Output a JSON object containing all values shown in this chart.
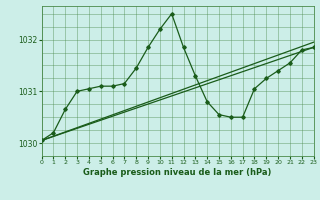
{
  "background_color": "#cceee8",
  "grid_color": "#4a8a4a",
  "line_color": "#1a5c1a",
  "xlabel": "Graphe pression niveau de la mer (hPa)",
  "ylim": [
    1029.75,
    1032.65
  ],
  "xlim": [
    0,
    23
  ],
  "x_ticks": [
    0,
    1,
    2,
    3,
    4,
    5,
    6,
    7,
    8,
    9,
    10,
    11,
    12,
    13,
    14,
    15,
    16,
    17,
    18,
    19,
    20,
    21,
    22,
    23
  ],
  "y_ticks": [
    1030,
    1031,
    1032
  ],
  "y_minor": [
    1029.75,
    1030.0,
    1030.25,
    1030.5,
    1030.75,
    1031.0,
    1031.25,
    1031.5,
    1031.75,
    1032.0,
    1032.25,
    1032.5
  ],
  "hours": [
    0,
    1,
    2,
    3,
    4,
    5,
    6,
    7,
    8,
    9,
    10,
    11,
    12,
    13,
    14,
    15,
    16,
    17,
    18,
    19,
    20,
    21,
    22,
    23
  ],
  "main_line": [
    1030.05,
    1030.2,
    1030.65,
    1031.0,
    1031.05,
    1031.1,
    1031.1,
    1031.15,
    1031.45,
    1031.85,
    1032.2,
    1032.5,
    1031.85,
    1031.3,
    1030.8,
    1030.55,
    1030.5,
    1030.5,
    1031.05,
    1031.25,
    1031.4,
    1031.55,
    1031.8,
    1031.85
  ],
  "trend_line1_x": [
    0,
    23
  ],
  "trend_line1_y": [
    1030.05,
    1031.95
  ],
  "trend_line2_x": [
    0,
    23
  ],
  "trend_line2_y": [
    1030.05,
    1031.85
  ]
}
